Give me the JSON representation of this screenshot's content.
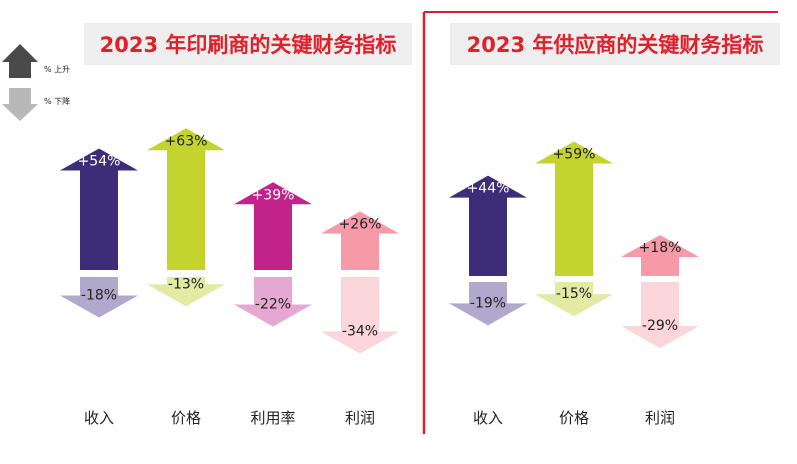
{
  "legend": {
    "up_label": "% 上升",
    "down_label": "% 下降",
    "up_color": "#4a4a4a",
    "down_color": "#b8b8b8"
  },
  "colors": {
    "divider": "#d9202a",
    "title": "#e0202a",
    "title_bg": "#eeeeee"
  },
  "chart_data": [
    {
      "type": "bar",
      "title": "2023 年印刷商的关键财务指标",
      "categories": [
        "收入",
        "价格",
        "利用率",
        "利润"
      ],
      "series": [
        {
          "name": "% 上升",
          "values": [
            54,
            63,
            39,
            26
          ],
          "labels": [
            "+54%",
            "+63%",
            "+39%",
            "+26%"
          ]
        },
        {
          "name": "% 下降",
          "values": [
            -18,
            -13,
            -22,
            -34
          ],
          "labels": [
            "-18%",
            "-13%",
            "-22%",
            "-34%"
          ]
        }
      ],
      "colors_up": [
        "#3d2d78",
        "#c5d32e",
        "#c2238a",
        "#f59aa6"
      ],
      "colors_down": [
        "#b1a9cd",
        "#e2eaa4",
        "#e5a8d3",
        "#fad6da"
      ],
      "label_colors_up": [
        "#ffffff",
        "#222222",
        "#ffffff",
        "#222222"
      ]
    },
    {
      "type": "bar",
      "title": "2023 年供应商的关键财务指标",
      "categories": [
        "收入",
        "价格",
        "利润"
      ],
      "series": [
        {
          "name": "% 上升",
          "values": [
            44,
            59,
            18
          ],
          "labels": [
            "+44%",
            "+59%",
            "+18%"
          ]
        },
        {
          "name": "% 下降",
          "values": [
            -19,
            -15,
            -29
          ],
          "labels": [
            "-19%",
            "-15%",
            "-29%"
          ]
        }
      ],
      "colors_up": [
        "#3d2d78",
        "#c5d32e",
        "#f59aa6"
      ],
      "colors_down": [
        "#b1a9cd",
        "#e2eaa4",
        "#fad6da"
      ],
      "label_colors_up": [
        "#ffffff",
        "#222222",
        "#222222"
      ]
    }
  ]
}
